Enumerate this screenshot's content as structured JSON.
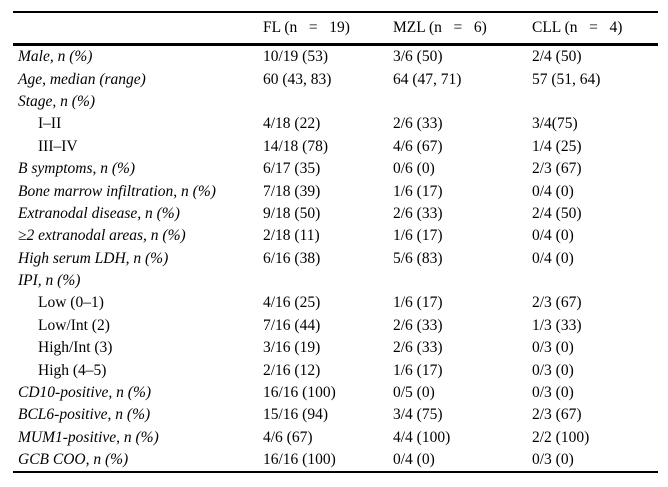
{
  "table": {
    "header": {
      "col_label": "",
      "col_fl": "FL (n   =   19)",
      "col_mzl": "MZL (n   =   6)",
      "col_cll": "CLL (n   =   4)"
    },
    "rows": [
      {
        "label": "Male, n (%)",
        "values": [
          "10/19 (53)",
          "3/6 (50)",
          "2/4 (50)"
        ]
      },
      {
        "label": "Age, median (range)",
        "values": [
          "60 (43, 83)",
          "64 (47, 71)",
          "57 (51, 64)"
        ]
      },
      {
        "label": "Stage, n (%)",
        "values": [
          "",
          "",
          ""
        ]
      },
      {
        "label": "I–II",
        "values": [
          "4/18 (22)",
          "2/6 (33)",
          "3/4(75)"
        ]
      },
      {
        "label": "III–IV",
        "values": [
          "14/18 (78)",
          "4/6 (67)",
          "1/4 (25)"
        ]
      },
      {
        "label": "B symptoms, n (%)",
        "values": [
          "6/17 (35)",
          "0/6 (0)",
          "2/3 (67)"
        ]
      },
      {
        "label": "Bone marrow infiltration, n (%)",
        "values": [
          "7/18 (39)",
          "1/6 (17)",
          "0/4 (0)"
        ]
      },
      {
        "label": "Extranodal disease, n (%)",
        "values": [
          "9/18 (50)",
          "2/6 (33)",
          "2/4 (50)"
        ]
      },
      {
        "label": "≥2 extranodal areas, n (%)",
        "values": [
          "2/18 (11)",
          "1/6 (17)",
          "0/4 (0)"
        ]
      },
      {
        "label": "High serum LDH, n (%)",
        "values": [
          "6/16 (38)",
          "5/6 (83)",
          "0/4 (0)"
        ]
      },
      {
        "label": "IPI, n (%)",
        "values": [
          "",
          "",
          ""
        ]
      },
      {
        "label": "Low (0–1)",
        "values": [
          "4/16 (25)",
          "1/6 (17)",
          "2/3 (67)"
        ]
      },
      {
        "label": "Low/Int (2)",
        "values": [
          "7/16 (44)",
          "2/6 (33)",
          "1/3 (33)"
        ]
      },
      {
        "label": "High/Int (3)",
        "values": [
          "3/16 (19)",
          "2/6 (33)",
          "0/3 (0)"
        ]
      },
      {
        "label": "High (4–5)",
        "values": [
          "2/16 (12)",
          "1/6 (17)",
          "0/3 (0)"
        ]
      },
      {
        "label": "CD10-positive, n (%)",
        "values": [
          "16/16 (100)",
          "0/5 (0)",
          "0/3 (0)"
        ]
      },
      {
        "label": "BCL6-positive, n (%)",
        "values": [
          "15/16 (94)",
          "3/4 (75)",
          "2/3 (67)"
        ]
      },
      {
        "label": "MUM1-positive, n (%)",
        "values": [
          "4/6 (67)",
          "4/4 (100)",
          "2/2 (100)"
        ]
      },
      {
        "label": "GCB COO, n (%)",
        "values": [
          "16/16 (100)",
          "0/4 (0)",
          "0/3 (0)"
        ]
      }
    ]
  }
}
